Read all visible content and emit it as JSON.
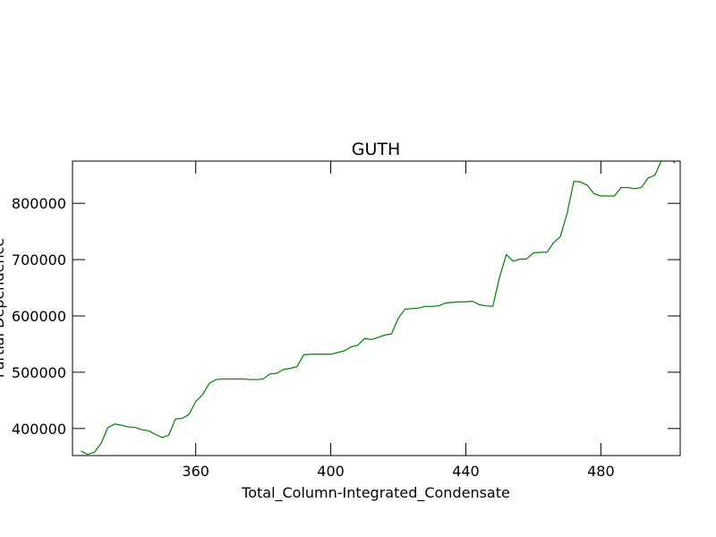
{
  "chart_data": {
    "type": "line",
    "title": "GUTH",
    "xlabel": "Total_Column-Integrated_Condensate",
    "ylabel": "Partial Dependence",
    "xlim": [
      323.5,
      503.5
    ],
    "ylim": [
      352000,
      875000
    ],
    "x_ticks": [
      360,
      400,
      440,
      480
    ],
    "x_tick_labels": [
      "360",
      "400",
      "440",
      "480"
    ],
    "y_ticks": [
      400000,
      500000,
      600000,
      700000,
      800000
    ],
    "y_tick_labels": [
      "400000",
      "500000",
      "600000",
      "700000",
      "800000"
    ],
    "grid": false,
    "legend": "none",
    "series": [
      {
        "color": "#008000",
        "x": [
          326,
          328,
          330,
          332,
          334,
          336,
          338,
          340,
          342,
          344,
          346,
          348,
          350,
          352,
          354,
          356,
          358,
          360,
          362,
          364,
          366,
          368,
          370,
          372,
          374,
          376,
          378,
          380,
          382,
          384,
          386,
          388,
          390,
          392,
          394,
          396,
          398,
          400,
          402,
          404,
          406,
          408,
          410,
          412,
          414,
          416,
          418,
          420,
          422,
          424,
          426,
          428,
          430,
          432,
          434,
          436,
          438,
          440,
          442,
          444,
          446,
          448,
          450,
          452,
          454,
          456,
          458,
          460,
          462,
          464,
          466,
          468,
          470,
          472,
          474,
          476,
          478,
          480,
          482,
          484,
          486,
          488,
          490,
          492,
          494,
          496,
          498,
          500,
          502
        ],
        "values": [
          360000,
          354000,
          358000,
          374000,
          402000,
          408000,
          406000,
          403000,
          402000,
          398000,
          396000,
          390000,
          384000,
          388000,
          417000,
          418000,
          425000,
          448000,
          460000,
          480000,
          487000,
          488000,
          488000,
          488000,
          488000,
          487000,
          487000,
          488000,
          497000,
          498000,
          505000,
          507000,
          510000,
          531000,
          532000,
          532000,
          532000,
          532000,
          535000,
          538000,
          545000,
          548000,
          560000,
          558000,
          562000,
          566000,
          568000,
          596000,
          612000,
          613000,
          614000,
          617000,
          617000,
          618000,
          623000,
          624000,
          625000,
          625000,
          626000,
          620000,
          618000,
          617000,
          669000,
          709000,
          697000,
          701000,
          701000,
          712000,
          713000,
          713000,
          730000,
          741000,
          782000,
          839000,
          838000,
          832000,
          817000,
          813000,
          813000,
          813000,
          828000,
          828000,
          826000,
          828000,
          845000,
          850000,
          877000,
          880000,
          872000
        ]
      }
    ]
  }
}
